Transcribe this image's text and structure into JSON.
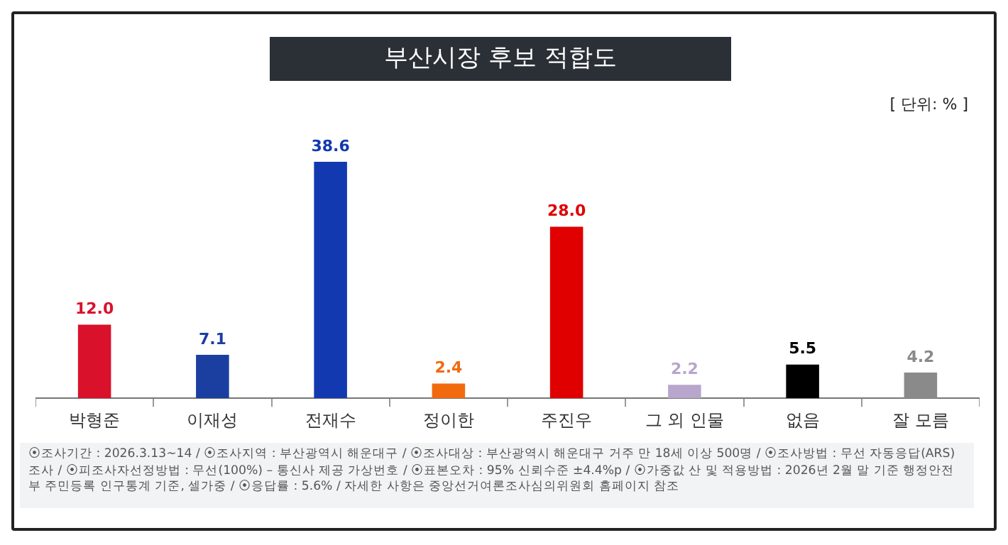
{
  "chart_data": {
    "type": "bar",
    "title": "부산시장 후보 적합도",
    "categories": [
      "박형준",
      "이재성",
      "전재수",
      "정이한",
      "주진우",
      "그 외 인물",
      "없음",
      "잘 모름"
    ],
    "values": [
      12.0,
      7.1,
      38.6,
      2.4,
      28.0,
      2.2,
      5.5,
      4.2
    ],
    "colors": [
      "#d9112b",
      "#1a3fa0",
      "#1239b0",
      "#f26a0f",
      "#e00000",
      "#b8a6cc",
      "#000000",
      "#8a8a8a"
    ],
    "value_labels": [
      "12.0",
      "7.1",
      "38.6",
      "2.4",
      "28.0",
      "2.2",
      "5.5",
      "4.2"
    ],
    "grid": false,
    "legend": false,
    "annotations": [
      "[ 단위: % ]",
      "⦿조사기간 : 2026.3.13~14 / ⦿조사지역 : 부산광역시 해운대구 / ⦿조사대상 : 부산광역시 해운대구 거주 만 18세 이상 500명 / ⦿조사방법 : 무선 자동응답(ARS) 조사 / ⦿피조사자선정방법 : 무선(100%) – 통신사 제공 가상번호 / ⦿표본오차 : 95% 신뢰수준 ±4.4%p / ⦿가중값 산 및 적용방법 : 2026년 2월 말 기준 행정안전부 주민등록 인구통계 기준, 셀가중 / ⦿응답률 : 5.6% / 자세한 사항은 중앙선거여론조사심의위원회 홈페이지 참조"
    ]
  }
}
